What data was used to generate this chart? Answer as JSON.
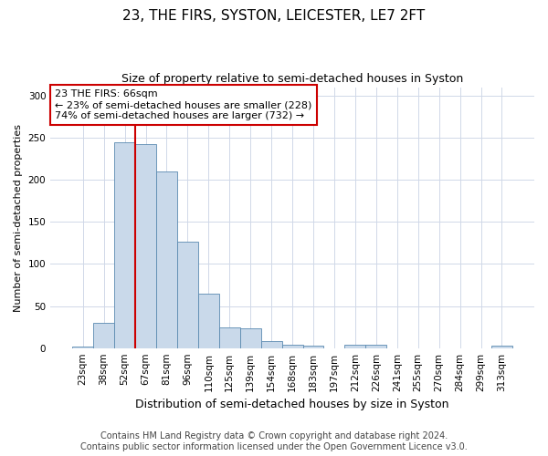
{
  "title": "23, THE FIRS, SYSTON, LEICESTER, LE7 2FT",
  "subtitle": "Size of property relative to semi-detached houses in Syston",
  "xlabel": "Distribution of semi-detached houses by size in Syston",
  "ylabel": "Number of semi-detached properties",
  "categories": [
    "23sqm",
    "38sqm",
    "52sqm",
    "67sqm",
    "81sqm",
    "96sqm",
    "110sqm",
    "125sqm",
    "139sqm",
    "154sqm",
    "168sqm",
    "183sqm",
    "197sqm",
    "212sqm",
    "226sqm",
    "241sqm",
    "255sqm",
    "270sqm",
    "284sqm",
    "299sqm",
    "313sqm"
  ],
  "values": [
    2,
    30,
    245,
    242,
    210,
    126,
    65,
    25,
    23,
    8,
    4,
    3,
    0,
    4,
    4,
    0,
    0,
    0,
    0,
    0,
    3
  ],
  "bar_color": "#c9d9ea",
  "bar_edge_color": "#5a8ab0",
  "vline_color": "#cc0000",
  "annotation_line1": "23 THE FIRS: 66sqm",
  "annotation_line2": "← 23% of semi-detached houses are smaller (228)",
  "annotation_line3": "74% of semi-detached houses are larger (732) →",
  "annotation_box_color": "white",
  "annotation_box_edge_color": "#cc0000",
  "ylim": [
    0,
    310
  ],
  "yticks": [
    0,
    50,
    100,
    150,
    200,
    250,
    300
  ],
  "footer_line1": "Contains HM Land Registry data © Crown copyright and database right 2024.",
  "footer_line2": "Contains public sector information licensed under the Open Government Licence v3.0.",
  "background_color": "white",
  "grid_color": "#d0d8e8",
  "title_fontsize": 11,
  "subtitle_fontsize": 9,
  "xlabel_fontsize": 9,
  "ylabel_fontsize": 8,
  "tick_fontsize": 7.5,
  "annotation_fontsize": 8,
  "footer_fontsize": 7
}
